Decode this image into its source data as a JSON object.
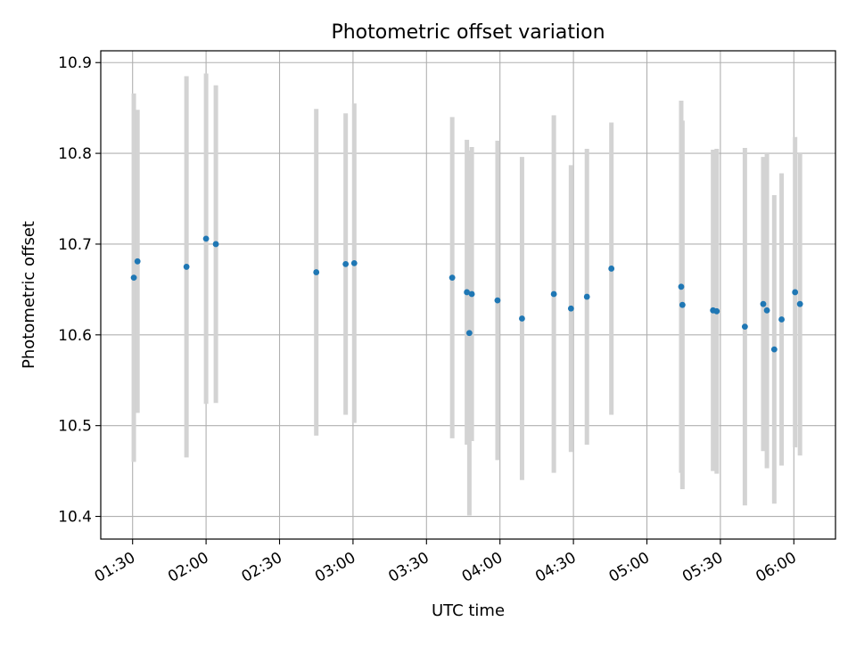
{
  "chart_data": {
    "type": "scatter",
    "title": "Photometric offset variation",
    "xlabel": "UTC time",
    "ylabel": "Photometric offset",
    "x_tick_labels": [
      "01:30",
      "02:00",
      "02:30",
      "03:00",
      "03:30",
      "04:00",
      "04:30",
      "05:00",
      "05:30",
      "06:00"
    ],
    "y_tick_labels": [
      "10.4",
      "10.5",
      "10.6",
      "10.7",
      "10.8",
      "10.9"
    ],
    "xlim": [
      "01:17",
      "06:17"
    ],
    "ylim": [
      10.375,
      10.913
    ],
    "grid": true,
    "colors": {
      "point": "#1f77b4",
      "errorbar": "#d3d3d3",
      "grid": "#b0b0b0"
    },
    "points": [
      {
        "x": "01:30:30",
        "y": 10.663,
        "yerr": 0.203
      },
      {
        "x": "01:32:00",
        "y": 10.681,
        "yerr": 0.167
      },
      {
        "x": "01:52:00",
        "y": 10.675,
        "yerr": 0.21
      },
      {
        "x": "02:00:00",
        "y": 10.706,
        "yerr": 0.182
      },
      {
        "x": "02:04:00",
        "y": 10.7,
        "yerr": 0.175
      },
      {
        "x": "02:45:00",
        "y": 10.669,
        "yerr": 0.18
      },
      {
        "x": "02:57:00",
        "y": 10.678,
        "yerr": 0.166
      },
      {
        "x": "03:00:30",
        "y": 10.679,
        "yerr": 0.176
      },
      {
        "x": "03:40:30",
        "y": 10.663,
        "yerr": 0.177
      },
      {
        "x": "03:46:30",
        "y": 10.647,
        "yerr": 0.168
      },
      {
        "x": "03:47:30",
        "y": 10.602,
        "yerr": 0.201
      },
      {
        "x": "03:48:30",
        "y": 10.645,
        "yerr": 0.162
      },
      {
        "x": "03:59:00",
        "y": 10.638,
        "yerr": 0.176
      },
      {
        "x": "04:09:00",
        "y": 10.618,
        "yerr": 0.178
      },
      {
        "x": "04:22:00",
        "y": 10.645,
        "yerr": 0.197
      },
      {
        "x": "04:29:00",
        "y": 10.629,
        "yerr": 0.158
      },
      {
        "x": "04:35:30",
        "y": 10.642,
        "yerr": 0.163
      },
      {
        "x": "04:45:30",
        "y": 10.673,
        "yerr": 0.161
      },
      {
        "x": "05:14:00",
        "y": 10.653,
        "yerr": 0.205
      },
      {
        "x": "05:14:30",
        "y": 10.633,
        "yerr": 0.203
      },
      {
        "x": "05:27:00",
        "y": 10.627,
        "yerr": 0.177
      },
      {
        "x": "05:28:30",
        "y": 10.626,
        "yerr": 0.179
      },
      {
        "x": "05:40:00",
        "y": 10.609,
        "yerr": 0.197
      },
      {
        "x": "05:47:30",
        "y": 10.634,
        "yerr": 0.162
      },
      {
        "x": "05:49:00",
        "y": 10.627,
        "yerr": 0.174
      },
      {
        "x": "05:52:00",
        "y": 10.584,
        "yerr": 0.17
      },
      {
        "x": "05:55:00",
        "y": 10.617,
        "yerr": 0.161
      },
      {
        "x": "06:00:30",
        "y": 10.647,
        "yerr": 0.171
      },
      {
        "x": "06:02:30",
        "y": 10.634,
        "yerr": 0.167
      }
    ]
  }
}
